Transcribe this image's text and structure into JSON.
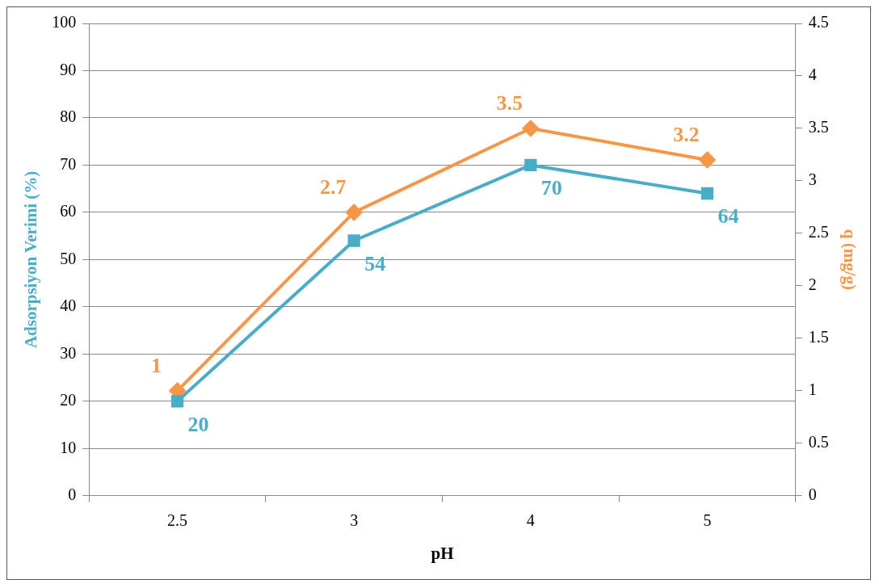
{
  "chart_data": {
    "type": "line",
    "xlabel": "pH",
    "ylabel": "Adsorpsiyon Verimi (%)",
    "y2label": "q (mg/g)",
    "categories": [
      "2.5",
      "3",
      "4",
      "5"
    ],
    "series": [
      {
        "color": "#4bacc6",
        "marker": "square",
        "values": [
          20,
          54,
          70,
          64
        ]
      },
      {
        "color": "#f79646",
        "marker": "diamond",
        "axis": "y2",
        "values": [
          1,
          2.7,
          3.5,
          3.2
        ]
      }
    ],
    "ylim": [
      0,
      100
    ],
    "yticks": [
      0,
      10,
      20,
      30,
      40,
      50,
      60,
      70,
      80,
      90,
      100
    ],
    "y2lim": [
      0,
      4.5
    ],
    "y2ticks": [
      0,
      0.5,
      1,
      1.5,
      2,
      2.5,
      3,
      3.5,
      4,
      4.5
    ],
    "grid": "y",
    "legend": false,
    "data_labels": true
  }
}
